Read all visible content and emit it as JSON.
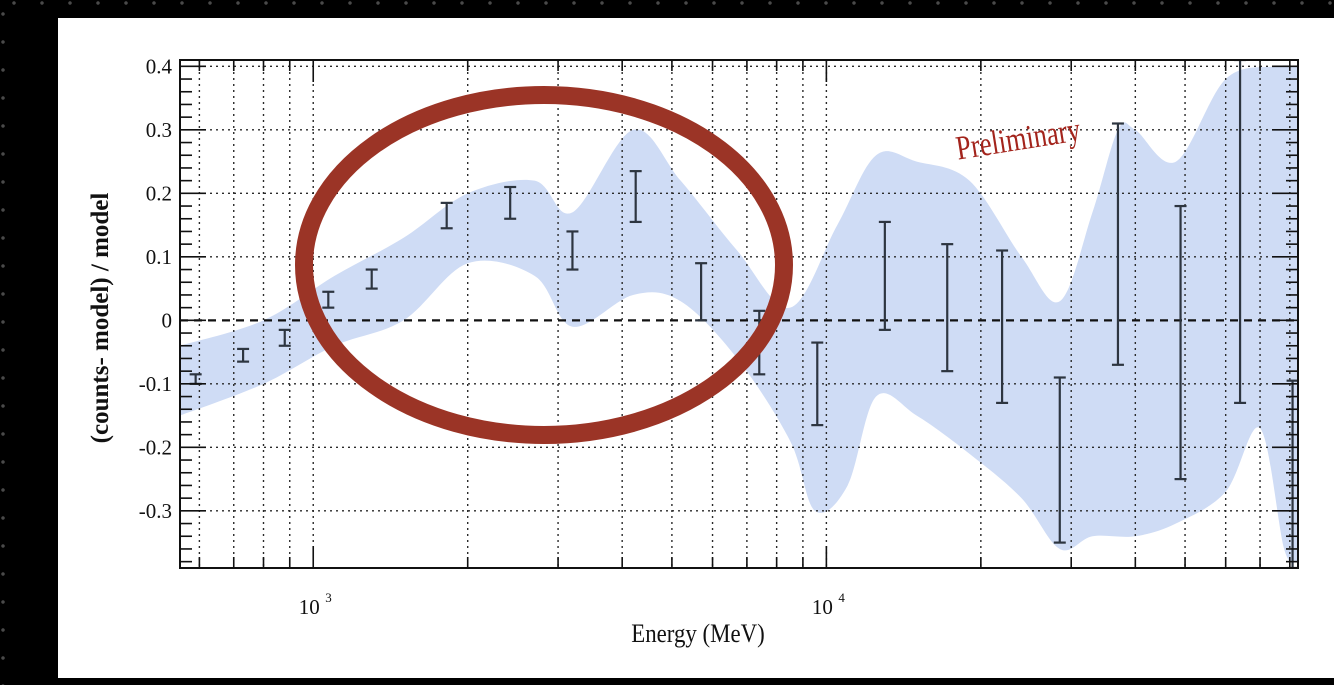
{
  "chart_data": {
    "type": "scatter",
    "xlabel": "Energy (MeV)",
    "ylabel": "(counts- model) / model",
    "x_scale": "log",
    "xlim": [
      550,
      83000
    ],
    "ylim": [
      -0.39,
      0.41
    ],
    "grid": true,
    "y_ticks": [
      "0.4",
      "0.3",
      "0.2",
      "0.1",
      "0",
      "-0.1",
      "-0.2",
      "-0.3"
    ],
    "x_tick_labels": [
      {
        "base": "10",
        "exp": "3",
        "value": 1000
      },
      {
        "base": "10",
        "exp": "4",
        "value": 10000
      }
    ],
    "reference_line": 0,
    "annotation": "Preliminary",
    "highlight": "circle around points 1000–4500 MeV",
    "band_upper": [
      [
        550,
        -0.04
      ],
      [
        800,
        0.0
      ],
      [
        1100,
        0.07
      ],
      [
        1500,
        0.13
      ],
      [
        2000,
        0.2
      ],
      [
        2700,
        0.22
      ],
      [
        3200,
        0.17
      ],
      [
        4200,
        0.3
      ],
      [
        5200,
        0.22
      ],
      [
        6700,
        0.11
      ],
      [
        8500,
        0.02
      ],
      [
        10500,
        0.15
      ],
      [
        12500,
        0.26
      ],
      [
        15000,
        0.25
      ],
      [
        19000,
        0.22
      ],
      [
        24000,
        0.1
      ],
      [
        28500,
        0.03
      ],
      [
        33000,
        0.17
      ],
      [
        37000,
        0.3
      ],
      [
        40000,
        0.3
      ],
      [
        48000,
        0.25
      ],
      [
        60000,
        0.38
      ],
      [
        75000,
        0.4
      ],
      [
        83000,
        0.4
      ]
    ],
    "band_lower": [
      [
        550,
        -0.15
      ],
      [
        800,
        -0.1
      ],
      [
        1100,
        -0.04
      ],
      [
        1500,
        0.0
      ],
      [
        2000,
        0.09
      ],
      [
        2700,
        0.07
      ],
      [
        3200,
        -0.01
      ],
      [
        4200,
        0.04
      ],
      [
        5200,
        0.03
      ],
      [
        6700,
        -0.06
      ],
      [
        8500,
        -0.19
      ],
      [
        9500,
        -0.3
      ],
      [
        11000,
        -0.26
      ],
      [
        12500,
        -0.12
      ],
      [
        15000,
        -0.15
      ],
      [
        19000,
        -0.21
      ],
      [
        24000,
        -0.28
      ],
      [
        28500,
        -0.36
      ],
      [
        33000,
        -0.34
      ],
      [
        40000,
        -0.34
      ],
      [
        48000,
        -0.32
      ],
      [
        60000,
        -0.27
      ],
      [
        70000,
        -0.17
      ],
      [
        78000,
        -0.36
      ],
      [
        83000,
        -0.38
      ]
    ],
    "points": [
      {
        "x": 590,
        "y": -0.09,
        "lo": -0.1,
        "hi": -0.085
      },
      {
        "x": 730,
        "y": -0.055,
        "lo": -0.065,
        "hi": -0.045
      },
      {
        "x": 880,
        "y": -0.03,
        "lo": -0.04,
        "hi": -0.015
      },
      {
        "x": 1070,
        "y": 0.035,
        "lo": 0.02,
        "hi": 0.045
      },
      {
        "x": 1300,
        "y": 0.065,
        "lo": 0.05,
        "hi": 0.08
      },
      {
        "x": 1820,
        "y": 0.165,
        "lo": 0.145,
        "hi": 0.185
      },
      {
        "x": 2420,
        "y": 0.185,
        "lo": 0.16,
        "hi": 0.21
      },
      {
        "x": 3200,
        "y": 0.11,
        "lo": 0.08,
        "hi": 0.14
      },
      {
        "x": 4250,
        "y": 0.195,
        "lo": 0.155,
        "hi": 0.235
      },
      {
        "x": 5700,
        "y": 0.045,
        "lo": 0.0,
        "hi": 0.09
      },
      {
        "x": 7400,
        "y": -0.035,
        "lo": -0.085,
        "hi": 0.015
      },
      {
        "x": 9600,
        "y": -0.1,
        "lo": -0.165,
        "hi": -0.035
      },
      {
        "x": 13000,
        "y": 0.07,
        "lo": -0.015,
        "hi": 0.155
      },
      {
        "x": 17200,
        "y": 0.02,
        "lo": -0.08,
        "hi": 0.12
      },
      {
        "x": 22000,
        "y": -0.01,
        "lo": -0.13,
        "hi": 0.11
      },
      {
        "x": 28500,
        "y": -0.22,
        "lo": -0.35,
        "hi": -0.09
      },
      {
        "x": 37000,
        "y": 0.12,
        "lo": -0.07,
        "hi": 0.31
      },
      {
        "x": 49000,
        "y": -0.035,
        "lo": -0.25,
        "hi": 0.18
      },
      {
        "x": 64000,
        "y": 0.14,
        "lo": -0.13,
        "hi": 0.41
      },
      {
        "x": 81000,
        "y": -0.25,
        "lo": -0.39,
        "hi": -0.095
      }
    ],
    "colors": {
      "band": "#cfdcf5",
      "circle": "#9b3426",
      "annotation": "#a3241c",
      "errorbar": "#2d3540",
      "grid": "#2a2a2a"
    }
  }
}
